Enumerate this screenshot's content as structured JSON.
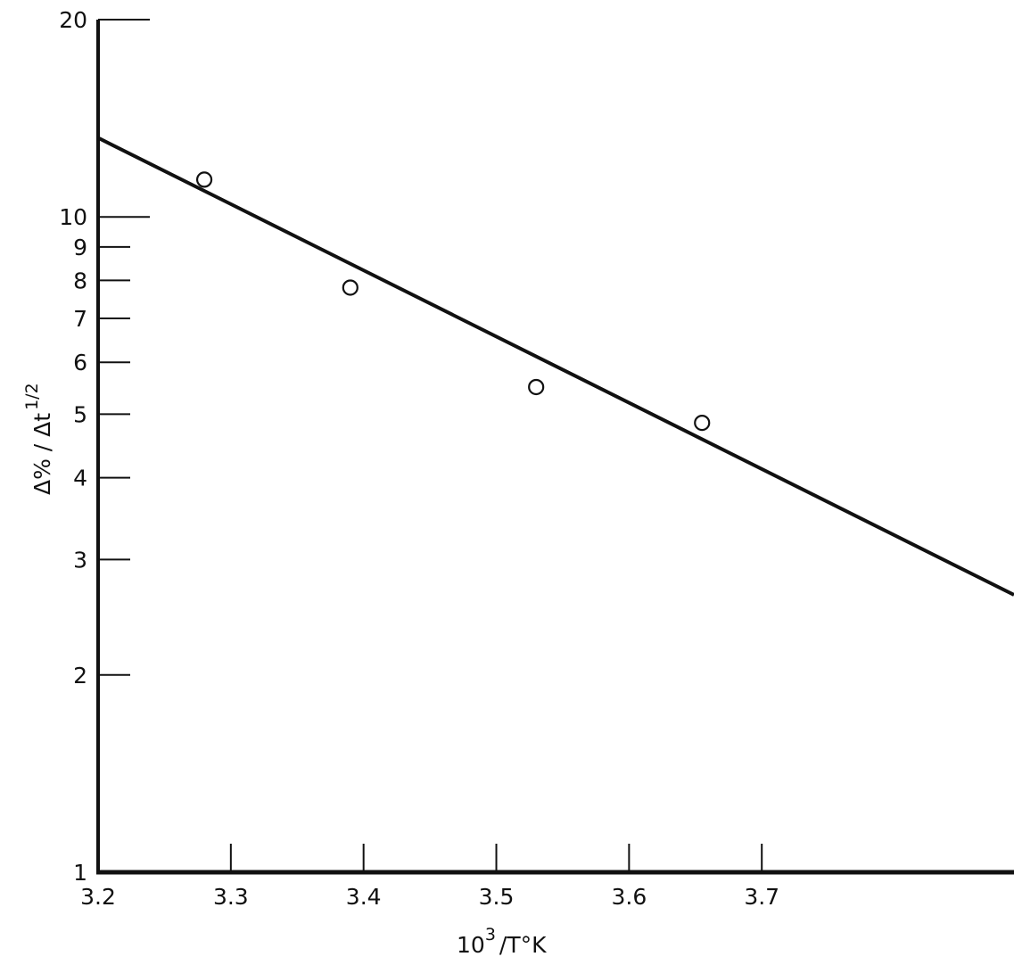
{
  "chart_data": {
    "type": "scatter",
    "title": "",
    "xlabel": {
      "base": "10",
      "sup": "3",
      "rest": "/T°K"
    },
    "ylabel": {
      "main": "Δ% / Δt",
      "sup": "1/2"
    },
    "xlim": [
      3.2,
      3.89
    ],
    "ylim": [
      1,
      20
    ],
    "y_scale": "log",
    "grid": false,
    "x_ticks": [
      {
        "value": 3.2,
        "label": "3.2"
      },
      {
        "value": 3.3,
        "label": "3.3"
      },
      {
        "value": 3.4,
        "label": "3.4"
      },
      {
        "value": 3.5,
        "label": "3.5"
      },
      {
        "value": 3.6,
        "label": "3.6"
      },
      {
        "value": 3.7,
        "label": "3.7"
      }
    ],
    "y_ticks": [
      {
        "value": 1,
        "label": "1"
      },
      {
        "value": 2,
        "label": "2"
      },
      {
        "value": 3,
        "label": "3"
      },
      {
        "value": 4,
        "label": "4"
      },
      {
        "value": 5,
        "label": "5"
      },
      {
        "value": 6,
        "label": "6"
      },
      {
        "value": 7,
        "label": "7"
      },
      {
        "value": 8,
        "label": "8"
      },
      {
        "value": 9,
        "label": "9"
      },
      {
        "value": 10,
        "label": "10"
      },
      {
        "value": 20,
        "label": "20"
      }
    ],
    "series": [
      {
        "type": "scatter",
        "marker": "open-circle",
        "points": [
          {
            "x": 3.28,
            "y": 11.4
          },
          {
            "x": 3.39,
            "y": 7.8
          },
          {
            "x": 3.53,
            "y": 5.5
          },
          {
            "x": 3.655,
            "y": 4.85
          }
        ]
      },
      {
        "type": "line",
        "points": [
          {
            "x": 3.2,
            "y": 13.2
          },
          {
            "x": 3.89,
            "y": 2.65
          }
        ]
      }
    ]
  }
}
